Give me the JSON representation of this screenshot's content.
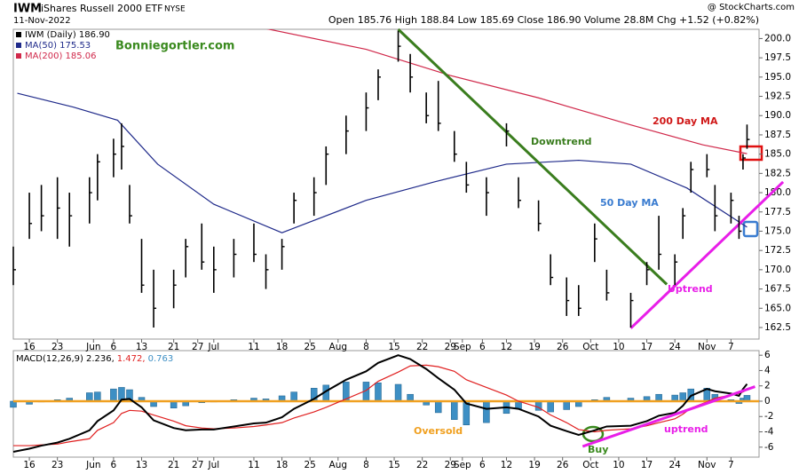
{
  "header": {
    "symbol": "IWM",
    "name": "iShares Russell 2000 ETF",
    "exchange": "NYSE",
    "date": "11-Nov-2022",
    "quote": "Open 185.76 High 188.84 Low 185.69 Close 186.90 Volume 28.8M Chg +1.52 (+0.82%)",
    "source": "@ StockCharts.com"
  },
  "chart_data": [
    {
      "type": "ohlc",
      "xlim": [
        "2022-05-12",
        "2022-11-14"
      ],
      "xticks": [
        {
          "value": "2022-05-16",
          "label": "16"
        },
        {
          "value": "2022-05-23",
          "label": "23"
        },
        {
          "value": "2022-06-01",
          "label": "Jun"
        },
        {
          "value": "2022-06-06",
          "label": "6"
        },
        {
          "value": "2022-06-13",
          "label": "13"
        },
        {
          "value": "2022-06-21",
          "label": "21"
        },
        {
          "value": "2022-06-27",
          "label": "27"
        },
        {
          "value": "2022-07-01",
          "label": "Jul"
        },
        {
          "value": "2022-07-11",
          "label": "11"
        },
        {
          "value": "2022-07-18",
          "label": "18"
        },
        {
          "value": "2022-07-25",
          "label": "25"
        },
        {
          "value": "2022-08-01",
          "label": "Aug"
        },
        {
          "value": "2022-08-08",
          "label": "8"
        },
        {
          "value": "2022-08-15",
          "label": "15"
        },
        {
          "value": "2022-08-22",
          "label": "22"
        },
        {
          "value": "2022-08-29",
          "label": "29"
        },
        {
          "value": "2022-09-01",
          "label": "Sep"
        },
        {
          "value": "2022-09-06",
          "label": "6"
        },
        {
          "value": "2022-09-12",
          "label": "12"
        },
        {
          "value": "2022-09-19",
          "label": "19"
        },
        {
          "value": "2022-09-26",
          "label": "26"
        },
        {
          "value": "2022-10-03",
          "label": "Oct"
        },
        {
          "value": "2022-10-10",
          "label": "10"
        },
        {
          "value": "2022-10-17",
          "label": "17"
        },
        {
          "value": "2022-10-24",
          "label": "24"
        },
        {
          "value": "2022-11-01",
          "label": "Nov"
        },
        {
          "value": "2022-11-07",
          "label": "7"
        }
      ],
      "ylim": [
        161,
        201.2
      ],
      "yticks": [
        {
          "value": 162.5,
          "label": "162.5"
        },
        {
          "value": 165,
          "label": "165.0"
        },
        {
          "value": 167.5,
          "label": "167.5"
        },
        {
          "value": 170,
          "label": "170.0"
        },
        {
          "value": 172.5,
          "label": "172.5"
        },
        {
          "value": 175,
          "label": "175.0"
        },
        {
          "value": 177.5,
          "label": "177.5"
        },
        {
          "value": 180,
          "label": "180.0"
        },
        {
          "value": 182.5,
          "label": "182.5"
        },
        {
          "value": 185,
          "label": "185.0"
        },
        {
          "value": 187.5,
          "label": "187.5"
        },
        {
          "value": 190,
          "label": "190.0"
        },
        {
          "value": 192.5,
          "label": "192.5"
        },
        {
          "value": 195,
          "label": "195.0"
        },
        {
          "value": 197.5,
          "label": "197.5"
        },
        {
          "value": 200,
          "label": "200.0"
        }
      ],
      "price": {
        "name": "IWM (Daily) 186.90",
        "color": "#000000",
        "x": [
          "2022-05-12",
          "2022-05-16",
          "2022-05-19",
          "2022-05-23",
          "2022-05-26",
          "2022-05-31",
          "2022-06-02",
          "2022-06-06",
          "2022-06-08",
          "2022-06-10",
          "2022-06-13",
          "2022-06-16",
          "2022-06-21",
          "2022-06-24",
          "2022-06-28",
          "2022-07-01",
          "2022-07-06",
          "2022-07-11",
          "2022-07-14",
          "2022-07-18",
          "2022-07-21",
          "2022-07-26",
          "2022-07-29",
          "2022-08-03",
          "2022-08-08",
          "2022-08-11",
          "2022-08-16",
          "2022-08-19",
          "2022-08-23",
          "2022-08-26",
          "2022-08-30",
          "2022-09-02",
          "2022-09-07",
          "2022-09-12",
          "2022-09-15",
          "2022-09-20",
          "2022-09-23",
          "2022-09-27",
          "2022-09-30",
          "2022-10-04",
          "2022-10-07",
          "2022-10-13",
          "2022-10-17",
          "2022-10-20",
          "2022-10-24",
          "2022-10-26",
          "2022-10-28",
          "2022-11-01",
          "2022-11-03",
          "2022-11-07",
          "2022-11-09",
          "2022-11-10",
          "2022-11-11"
        ],
        "high": [
          173,
          180,
          181,
          182,
          180,
          182,
          185,
          187,
          189,
          181,
          174,
          170,
          170,
          174,
          176,
          173,
          174,
          176,
          172,
          174,
          180,
          182,
          186,
          190,
          193,
          196,
          201,
          198,
          193,
          194.5,
          188,
          184,
          182,
          189,
          182,
          179,
          172,
          169,
          168,
          176,
          170,
          167,
          171,
          177,
          172,
          178,
          184,
          185,
          181,
          180,
          177,
          185,
          188.84
        ],
        "low": [
          168,
          174,
          175,
          174,
          173,
          176,
          179,
          182,
          183,
          176,
          167,
          162.5,
          165,
          169,
          170,
          167,
          169,
          171,
          167.5,
          170,
          176,
          177,
          181,
          185,
          188,
          192,
          197,
          193,
          189,
          188,
          184,
          180,
          177,
          186,
          178,
          175,
          168,
          164,
          164,
          171,
          166,
          162.5,
          168,
          170,
          168,
          174,
          180,
          182,
          175,
          176,
          174,
          183,
          185.69
        ],
        "close": [
          170,
          176,
          177,
          178,
          177,
          180,
          184,
          185,
          186,
          177,
          168,
          165,
          168,
          173,
          171,
          170,
          172,
          172,
          170,
          173,
          179,
          180,
          185,
          188,
          191,
          195,
          199,
          195,
          190,
          189,
          185,
          181,
          180,
          188,
          179,
          176,
          169,
          166,
          165,
          174,
          167,
          166,
          170,
          172,
          171,
          177,
          183,
          183,
          177,
          179,
          175,
          184.5,
          186.9
        ]
      },
      "series": [
        {
          "name": "MA(50) 175.53",
          "color": "#1f2a8a",
          "x": [
            "2022-05-13",
            "2022-05-27",
            "2022-06-07",
            "2022-06-17",
            "2022-07-01",
            "2022-07-18",
            "2022-08-08",
            "2022-08-25",
            "2022-09-12",
            "2022-09-30",
            "2022-10-13",
            "2022-10-27",
            "2022-11-11"
          ],
          "values": [
            192.9,
            191.1,
            189.4,
            183.7,
            178.5,
            174.8,
            179,
            181.4,
            183.7,
            184.2,
            183.7,
            180.6,
            175.53
          ]
        },
        {
          "name": "MA(200) 185.06",
          "color": "#d0284a",
          "x": [
            "2022-07-12",
            "2022-08-08",
            "2022-08-29",
            "2022-09-20",
            "2022-10-13",
            "2022-10-31",
            "2022-11-11"
          ],
          "values": [
            201.5,
            198.6,
            195.2,
            192.3,
            188.8,
            186.2,
            185.06
          ]
        }
      ],
      "trendlines": [
        {
          "color": "#3a7d1e",
          "x": [
            "2022-08-16",
            "2022-10-22"
          ],
          "values": [
            201.2,
            168.1
          ]
        },
        {
          "color": "#e81ee8",
          "x": [
            "2022-10-13",
            "2022-11-20"
          ],
          "values": [
            162.4,
            181.4
          ]
        }
      ],
      "annotations": {
        "site": "Bonniegortler.com",
        "downtrend": "Downtrend",
        "ma200": "200 Day MA",
        "ma50": "50 Day MA",
        "uptrend": "Uptrend"
      }
    },
    {
      "type": "macd",
      "label": "MACD(12,26,9)",
      "legend_values": [
        "2.236,",
        "1.472,",
        "0.763"
      ],
      "ylim": [
        -7.3,
        6.6
      ],
      "yticks": [
        -6,
        -4,
        -2,
        0,
        2,
        4,
        6
      ],
      "series": [
        {
          "name": "MACD",
          "color": "#000000",
          "values": [
            -6.6,
            -6.2,
            -5.8,
            -5.4,
            -4.9,
            -3.8,
            -2.6,
            -1.2,
            0.2,
            0.3,
            -0.8,
            -2.5,
            -3.5,
            -3.8,
            -3.7,
            -3.7,
            -3.3,
            -2.9,
            -2.8,
            -2.1,
            -1.0,
            0.3,
            1.3,
            2.8,
            3.9,
            5.0,
            6.0,
            5.5,
            4.2,
            3.0,
            1.5,
            -0.3,
            -1.0,
            -0.8,
            -1.0,
            -2.0,
            -3.2,
            -3.9,
            -4.4,
            -3.8,
            -3.3,
            -3.2,
            -2.6,
            -1.9,
            -1.5,
            -0.6,
            0.7,
            1.6,
            1.3,
            1.0,
            0.7,
            1.6,
            2.236
          ]
        },
        {
          "name": "Signal",
          "color": "#e02020",
          "values": [
            -5.8,
            -5.8,
            -5.7,
            -5.6,
            -5.3,
            -4.9,
            -3.8,
            -2.8,
            -1.6,
            -1.2,
            -1.3,
            -1.8,
            -2.6,
            -3.2,
            -3.5,
            -3.6,
            -3.5,
            -3.3,
            -3.1,
            -2.8,
            -2.2,
            -1.4,
            -0.8,
            0.3,
            1.4,
            2.6,
            3.8,
            4.6,
            4.7,
            4.5,
            3.9,
            2.8,
            1.8,
            0.8,
            0.0,
            -0.8,
            -1.8,
            -2.8,
            -3.7,
            -4.0,
            -3.8,
            -3.6,
            -3.2,
            -2.8,
            -2.3,
            -1.7,
            -0.9,
            -0.1,
            0.4,
            0.8,
            1.0,
            1.2,
            1.472
          ]
        },
        {
          "name": "Histogram",
          "color": "#3d8fc4",
          "values": [
            -0.8,
            -0.4,
            -0.1,
            0.2,
            0.4,
            1.1,
            1.2,
            1.6,
            1.8,
            1.5,
            0.5,
            -0.7,
            -0.9,
            -0.6,
            -0.2,
            -0.1,
            0.2,
            0.4,
            0.3,
            0.7,
            1.2,
            1.7,
            2.1,
            2.5,
            2.5,
            2.4,
            2.2,
            0.9,
            -0.5,
            -1.5,
            -2.4,
            -3.1,
            -2.8,
            -1.6,
            -1.0,
            -1.2,
            -1.4,
            -1.1,
            -0.7,
            0.2,
            0.5,
            0.4,
            0.6,
            0.9,
            0.8,
            1.1,
            1.6,
            1.7,
            0.9,
            0.2,
            -0.3,
            0.4,
            0.763
          ]
        }
      ],
      "zero_line_color": "#f0a020",
      "trendlines": [
        {
          "color": "#e81ee8",
          "x": [
            "2022-10-01",
            "2022-11-13"
          ],
          "values": [
            -5.9,
            1.9
          ]
        }
      ],
      "annotations": {
        "oversold": "Oversold",
        "buy": "Buy",
        "uptrend": "uptrend"
      }
    }
  ]
}
